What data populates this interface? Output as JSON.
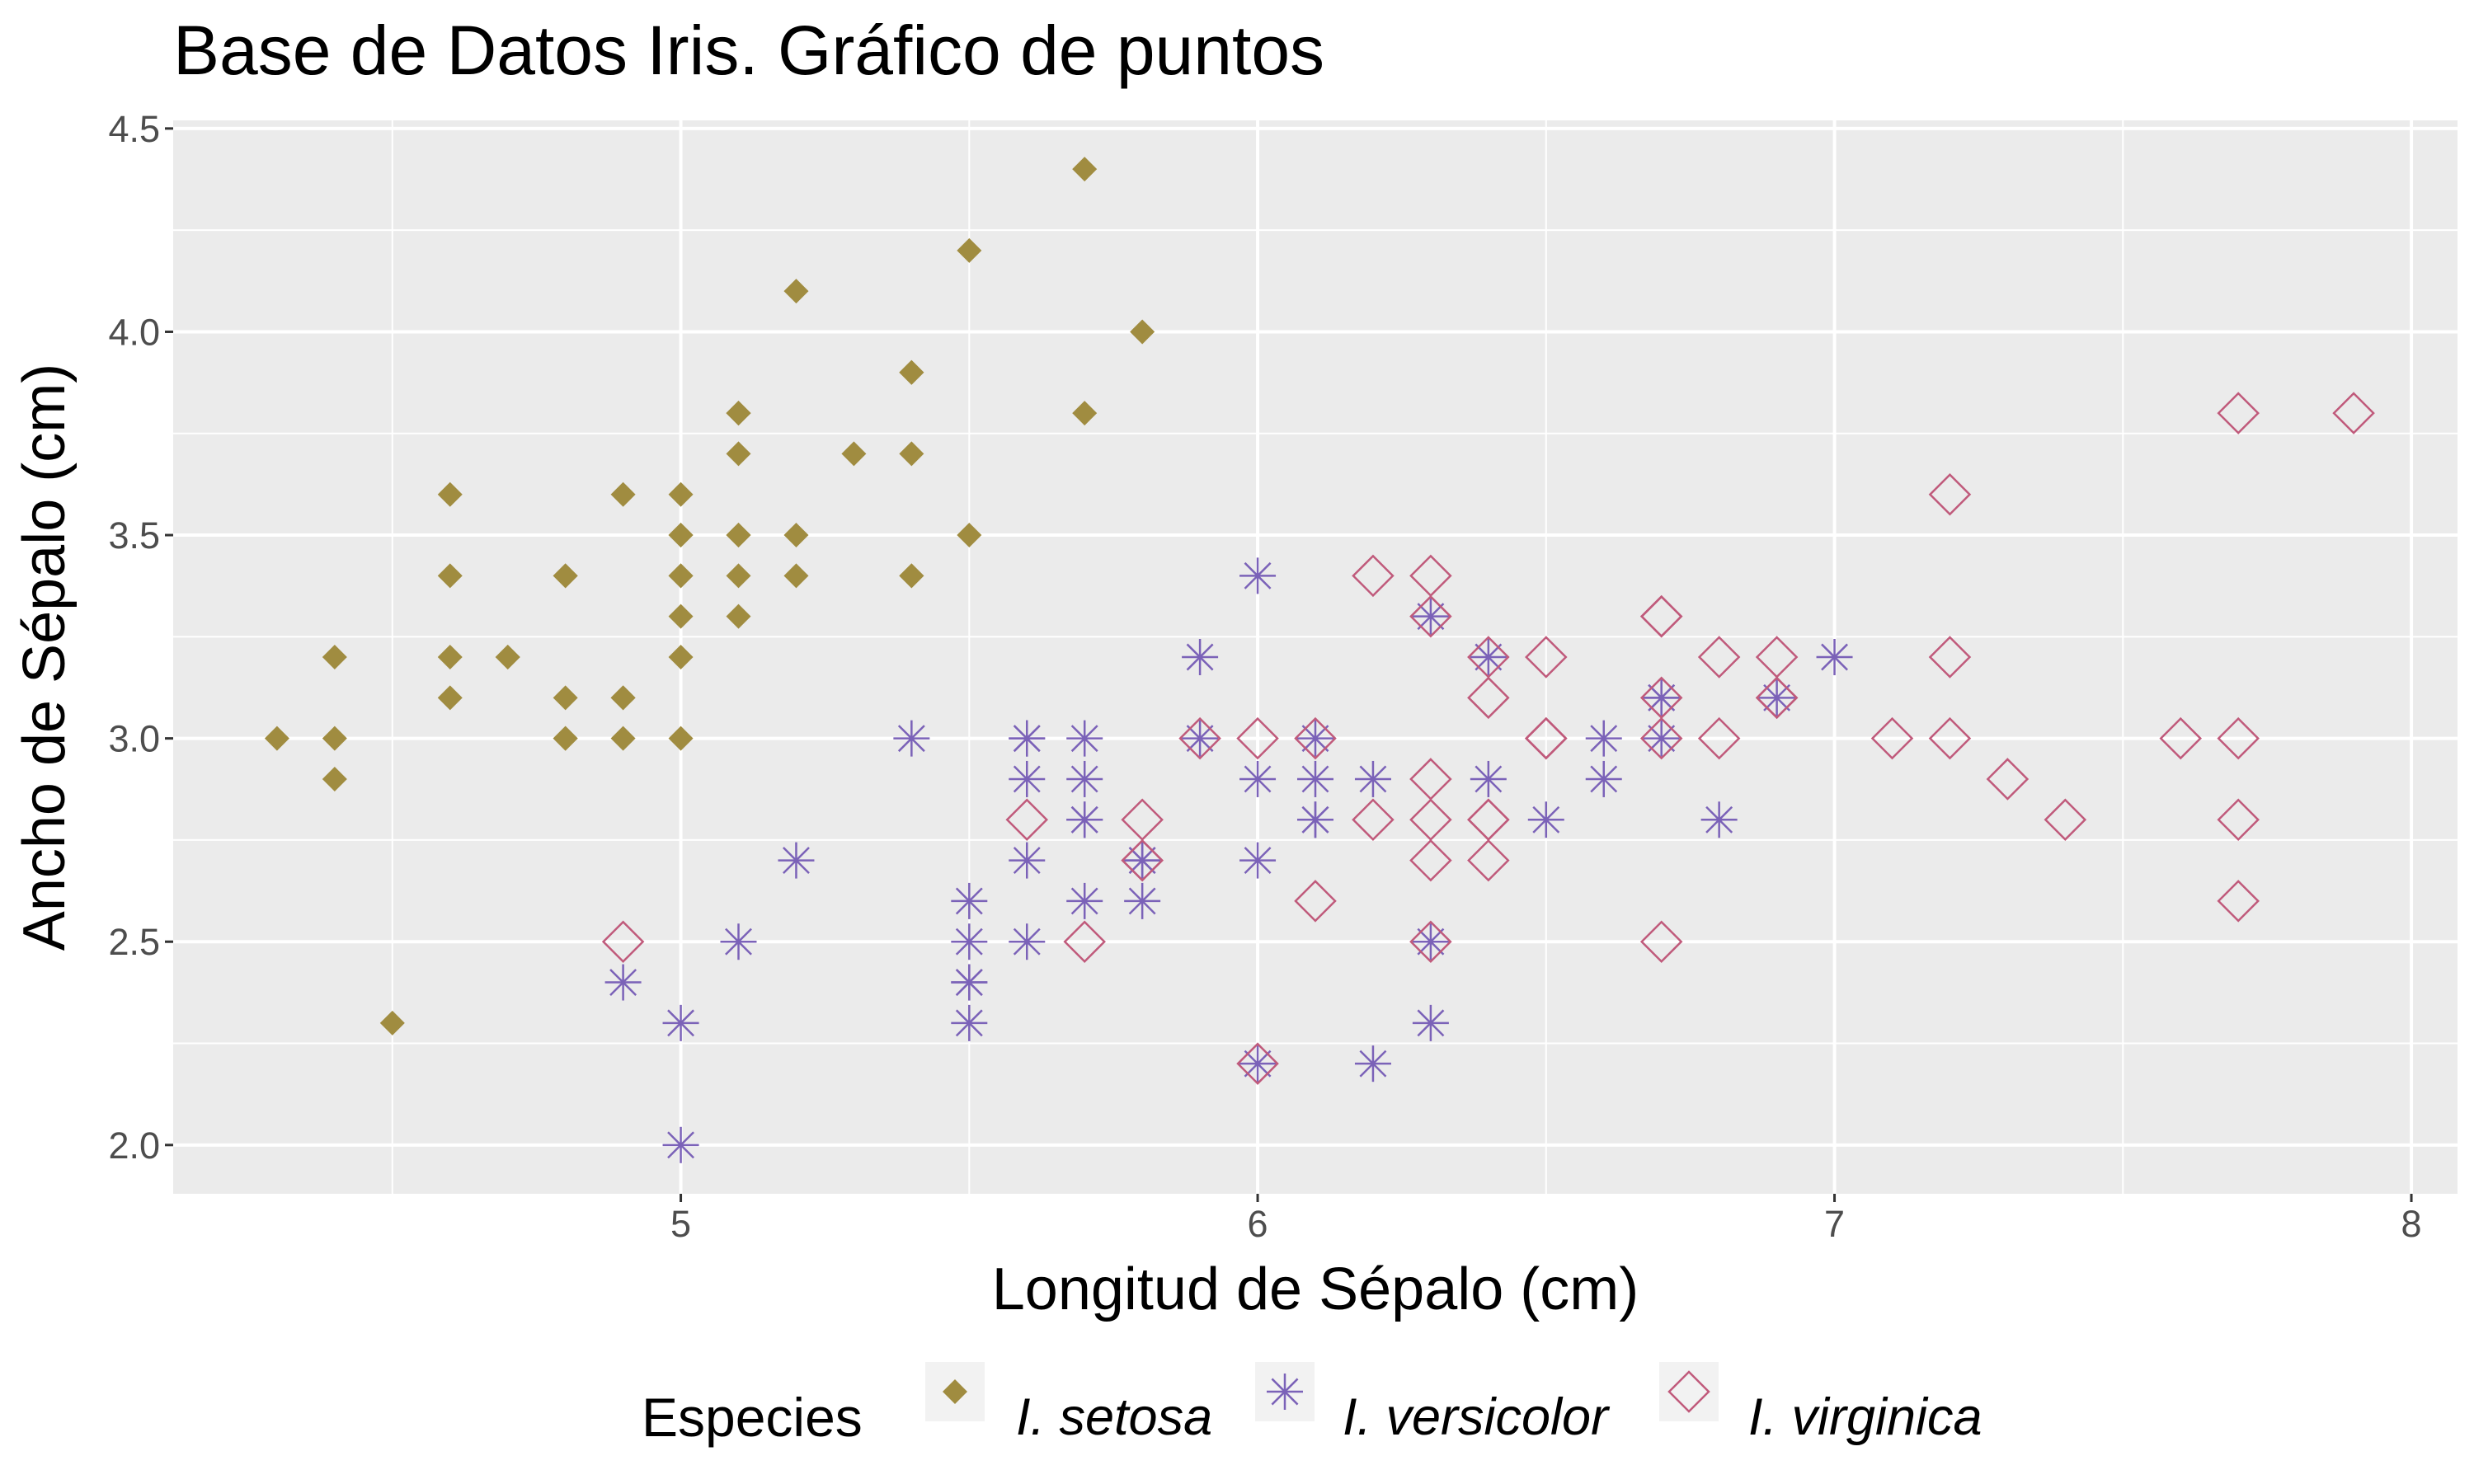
{
  "chart_data": {
    "type": "scatter",
    "title": "Base de Datos Iris. Gráfico de puntos",
    "xlabel": "Longitud de Sépalo (cm)",
    "ylabel": "Ancho de Sépalo (cm)",
    "xlim": [
      4.12,
      8.08
    ],
    "ylim": [
      1.88,
      4.52
    ],
    "x_ticks": [
      5,
      6,
      7,
      8
    ],
    "x_tick_labels": [
      "5",
      "6",
      "7",
      "8"
    ],
    "y_ticks": [
      2.0,
      2.5,
      3.0,
      3.5,
      4.0,
      4.5
    ],
    "y_tick_labels": [
      "2.0",
      "2.5",
      "3.0",
      "3.5",
      "4.0",
      "4.5"
    ],
    "grid": true,
    "panel_background": "#ebebeb",
    "legend": {
      "title": "Especies",
      "position": "bottom"
    },
    "series": [
      {
        "name": "I. setosa",
        "marker": "filled-diamond",
        "color": "#a08c40",
        "points": [
          [
            5.1,
            3.5
          ],
          [
            4.9,
            3.0
          ],
          [
            4.7,
            3.2
          ],
          [
            4.6,
            3.1
          ],
          [
            5.0,
            3.6
          ],
          [
            5.4,
            3.9
          ],
          [
            4.6,
            3.4
          ],
          [
            5.0,
            3.4
          ],
          [
            4.4,
            2.9
          ],
          [
            4.9,
            3.1
          ],
          [
            5.4,
            3.7
          ],
          [
            4.8,
            3.4
          ],
          [
            4.8,
            3.0
          ],
          [
            4.3,
            3.0
          ],
          [
            5.8,
            4.0
          ],
          [
            5.7,
            4.4
          ],
          [
            5.4,
            3.9
          ],
          [
            5.1,
            3.5
          ],
          [
            5.7,
            3.8
          ],
          [
            5.1,
            3.8
          ],
          [
            5.4,
            3.4
          ],
          [
            5.1,
            3.7
          ],
          [
            4.6,
            3.6
          ],
          [
            5.1,
            3.3
          ],
          [
            4.8,
            3.4
          ],
          [
            5.0,
            3.0
          ],
          [
            5.0,
            3.4
          ],
          [
            5.2,
            3.5
          ],
          [
            5.2,
            3.4
          ],
          [
            4.7,
            3.2
          ],
          [
            4.8,
            3.1
          ],
          [
            5.4,
            3.4
          ],
          [
            5.2,
            4.1
          ],
          [
            5.5,
            4.2
          ],
          [
            4.9,
            3.1
          ],
          [
            5.0,
            3.2
          ],
          [
            5.5,
            3.5
          ],
          [
            4.9,
            3.6
          ],
          [
            4.4,
            3.0
          ],
          [
            5.1,
            3.4
          ],
          [
            5.0,
            3.5
          ],
          [
            4.5,
            2.3
          ],
          [
            4.4,
            3.2
          ],
          [
            5.0,
            3.5
          ],
          [
            5.1,
            3.8
          ],
          [
            4.8,
            3.0
          ],
          [
            5.1,
            3.8
          ],
          [
            4.6,
            3.2
          ],
          [
            5.3,
            3.7
          ],
          [
            5.0,
            3.3
          ]
        ]
      },
      {
        "name": "I. versicolor",
        "marker": "asterisk",
        "color": "#7b62b8",
        "points": [
          [
            7.0,
            3.2
          ],
          [
            6.4,
            3.2
          ],
          [
            6.9,
            3.1
          ],
          [
            5.5,
            2.3
          ],
          [
            6.5,
            2.8
          ],
          [
            5.7,
            2.8
          ],
          [
            6.3,
            3.3
          ],
          [
            4.9,
            2.4
          ],
          [
            6.6,
            2.9
          ],
          [
            5.2,
            2.7
          ],
          [
            5.0,
            2.0
          ],
          [
            5.9,
            3.0
          ],
          [
            6.0,
            2.2
          ],
          [
            6.1,
            2.9
          ],
          [
            5.6,
            2.9
          ],
          [
            6.7,
            3.1
          ],
          [
            5.6,
            3.0
          ],
          [
            5.8,
            2.7
          ],
          [
            6.2,
            2.2
          ],
          [
            5.6,
            2.5
          ],
          [
            5.9,
            3.2
          ],
          [
            6.1,
            2.8
          ],
          [
            6.3,
            2.5
          ],
          [
            6.1,
            2.8
          ],
          [
            6.4,
            2.9
          ],
          [
            6.6,
            3.0
          ],
          [
            6.8,
            2.8
          ],
          [
            6.7,
            3.0
          ],
          [
            6.0,
            2.9
          ],
          [
            5.7,
            2.6
          ],
          [
            5.5,
            2.4
          ],
          [
            5.5,
            2.4
          ],
          [
            5.8,
            2.7
          ],
          [
            6.0,
            2.7
          ],
          [
            5.4,
            3.0
          ],
          [
            6.0,
            3.4
          ],
          [
            6.7,
            3.1
          ],
          [
            6.3,
            2.3
          ],
          [
            5.6,
            3.0
          ],
          [
            5.5,
            2.5
          ],
          [
            5.5,
            2.6
          ],
          [
            6.1,
            3.0
          ],
          [
            5.8,
            2.6
          ],
          [
            5.0,
            2.3
          ],
          [
            5.6,
            2.7
          ],
          [
            5.7,
            3.0
          ],
          [
            5.7,
            2.9
          ],
          [
            6.2,
            2.9
          ],
          [
            5.1,
            2.5
          ],
          [
            5.7,
            2.8
          ]
        ]
      },
      {
        "name": "I. virginica",
        "marker": "open-diamond",
        "color": "#c05a7b",
        "points": [
          [
            6.3,
            3.3
          ],
          [
            5.8,
            2.7
          ],
          [
            7.1,
            3.0
          ],
          [
            6.3,
            2.9
          ],
          [
            6.5,
            3.0
          ],
          [
            7.6,
            3.0
          ],
          [
            4.9,
            2.5
          ],
          [
            7.3,
            2.9
          ],
          [
            6.7,
            2.5
          ],
          [
            7.2,
            3.6
          ],
          [
            6.5,
            3.2
          ],
          [
            6.4,
            2.7
          ],
          [
            6.8,
            3.0
          ],
          [
            5.7,
            2.5
          ],
          [
            5.8,
            2.8
          ],
          [
            6.4,
            3.2
          ],
          [
            6.5,
            3.0
          ],
          [
            7.7,
            3.8
          ],
          [
            7.7,
            2.6
          ],
          [
            6.0,
            2.2
          ],
          [
            6.9,
            3.2
          ],
          [
            5.6,
            2.8
          ],
          [
            7.7,
            2.8
          ],
          [
            6.3,
            2.7
          ],
          [
            6.7,
            3.3
          ],
          [
            7.2,
            3.2
          ],
          [
            6.2,
            2.8
          ],
          [
            6.1,
            3.0
          ],
          [
            6.4,
            2.8
          ],
          [
            7.2,
            3.0
          ],
          [
            7.4,
            2.8
          ],
          [
            7.9,
            3.8
          ],
          [
            6.4,
            2.8
          ],
          [
            6.3,
            2.8
          ],
          [
            6.1,
            2.6
          ],
          [
            7.7,
            3.0
          ],
          [
            6.3,
            3.4
          ],
          [
            6.4,
            3.1
          ],
          [
            6.0,
            3.0
          ],
          [
            6.9,
            3.1
          ],
          [
            6.7,
            3.1
          ],
          [
            6.9,
            3.1
          ],
          [
            5.8,
            2.7
          ],
          [
            6.8,
            3.2
          ],
          [
            6.7,
            3.3
          ],
          [
            6.7,
            3.0
          ],
          [
            6.3,
            2.5
          ],
          [
            6.5,
            3.0
          ],
          [
            6.2,
            3.4
          ],
          [
            5.9,
            3.0
          ]
        ]
      }
    ]
  }
}
